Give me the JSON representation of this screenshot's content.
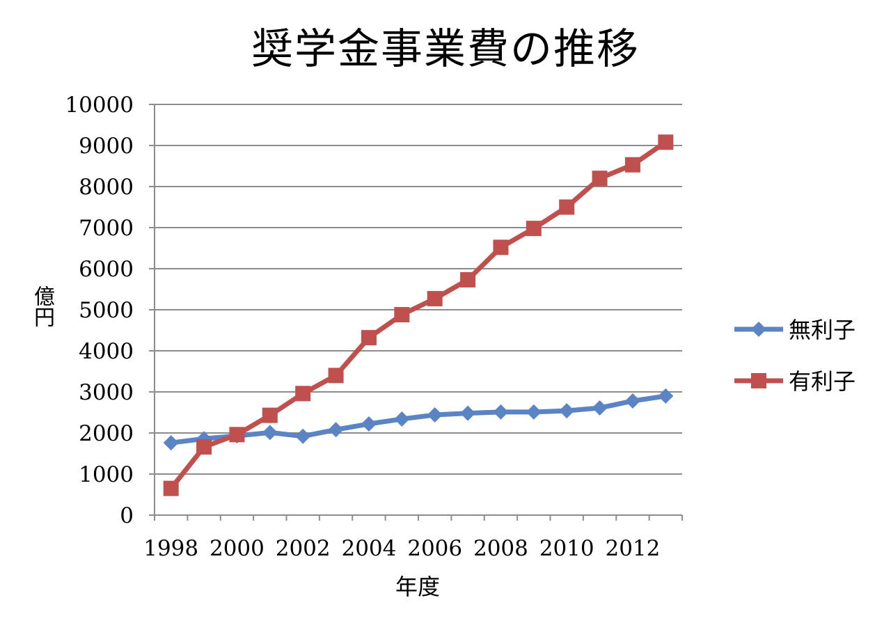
{
  "chart_data": {
    "type": "line",
    "title": "奨学金事業費の推移",
    "xlabel": "年度",
    "ylabel": "億円",
    "ylim": [
      0,
      10000
    ],
    "yticks": [
      "0",
      "1000",
      "2000",
      "3000",
      "4000",
      "5000",
      "6000",
      "7000",
      "8000",
      "9000",
      "10000"
    ],
    "x": [
      1998,
      1999,
      2000,
      2001,
      2002,
      2003,
      2004,
      2005,
      2006,
      2007,
      2008,
      2009,
      2010,
      2011,
      2012,
      2013
    ],
    "xtick_labels": [
      "1998",
      "2000",
      "2002",
      "2004",
      "2006",
      "2008",
      "2010",
      "2012"
    ],
    "grid": "horizontal",
    "legend_position": "right",
    "series": [
      {
        "name": "無利子",
        "color": "#5b84c4",
        "marker": "diamond",
        "values": [
          1760,
          1860,
          1930,
          2010,
          1920,
          2080,
          2220,
          2340,
          2440,
          2480,
          2510,
          2510,
          2540,
          2610,
          2780,
          2900
        ]
      },
      {
        "name": "有利子",
        "color": "#c0504d",
        "marker": "square",
        "values": [
          650,
          1660,
          1960,
          2430,
          2960,
          3400,
          4320,
          4880,
          5270,
          5730,
          6520,
          6980,
          7500,
          8200,
          8530,
          9080
        ]
      }
    ]
  }
}
